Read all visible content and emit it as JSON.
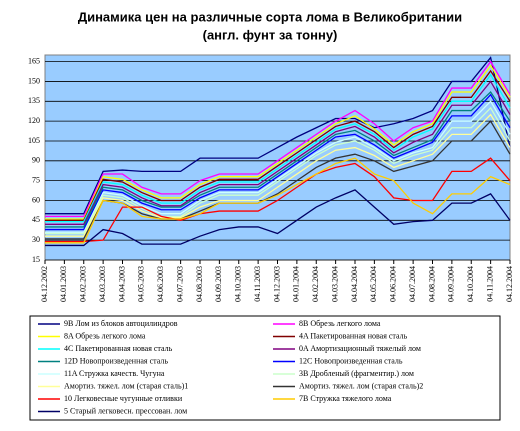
{
  "chart_data": {
    "type": "line",
    "title": "Динамика цен на различные сорта лома в Великобритании",
    "subtitle": "(англ. фунт за тонну)",
    "categories": [
      "04.12.2002",
      "04.01.2003",
      "04.02.2003",
      "04.03.2003",
      "04.04.2003",
      "04.05.2003",
      "04.06.2003",
      "04.07.2003",
      "04.08.2003",
      "04.09.2003",
      "04.10.2003",
      "04.11.2003",
      "04.12.2003",
      "04.01.2004",
      "04.02.2004",
      "04.03.2004",
      "04.04.2004",
      "04.05.2004",
      "04.06.2004",
      "04.07.2004",
      "04.08.2004",
      "04.09.2004",
      "04.10.2004",
      "04.11.2004",
      "04.12.2004"
    ],
    "ylim": [
      15,
      170
    ],
    "yticks": [
      15,
      30,
      45,
      60,
      75,
      90,
      105,
      120,
      135,
      150,
      165
    ],
    "grid": true,
    "background": "#99ccff",
    "series": [
      {
        "name": "9B Лом из блоков автоцилиндров",
        "color": "#000080",
        "values": [
          50,
          50,
          50,
          82,
          83,
          82,
          82,
          82,
          92,
          92,
          92,
          92,
          100,
          108,
          115,
          122,
          122,
          115,
          118,
          122,
          128,
          150,
          150,
          168,
          100
        ]
      },
      {
        "name": "8B Обрезь легкого лома",
        "color": "#ff00ff",
        "values": [
          48,
          48,
          48,
          80,
          80,
          70,
          65,
          65,
          75,
          80,
          80,
          80,
          90,
          100,
          110,
          120,
          128,
          118,
          105,
          115,
          120,
          145,
          145,
          165,
          140
        ]
      },
      {
        "name": "8A Обрезь легкого лома",
        "color": "#ffff00",
        "values": [
          46,
          46,
          46,
          78,
          76,
          68,
          62,
          62,
          72,
          78,
          78,
          78,
          88,
          98,
          108,
          118,
          124,
          114,
          102,
          112,
          118,
          142,
          142,
          162,
          138
        ]
      },
      {
        "name": "4A Пакетированная новая сталь",
        "color": "#800000",
        "values": [
          45,
          45,
          45,
          76,
          74,
          66,
          60,
          60,
          70,
          76,
          76,
          76,
          86,
          96,
          106,
          116,
          120,
          112,
          100,
          110,
          116,
          138,
          138,
          158,
          135
        ]
      },
      {
        "name": "4C Пакетированная новая сталь",
        "color": "#00ffff",
        "values": [
          44,
          44,
          44,
          74,
          72,
          64,
          58,
          58,
          68,
          74,
          74,
          74,
          84,
          94,
          104,
          114,
          118,
          110,
          98,
          108,
          114,
          135,
          135,
          155,
          130
        ]
      },
      {
        "name": "0A Амортизационный тяжелый лом",
        "color": "#800080",
        "values": [
          42,
          42,
          42,
          72,
          70,
          62,
          56,
          56,
          66,
          72,
          72,
          72,
          82,
          92,
          102,
          112,
          116,
          108,
          96,
          104,
          110,
          132,
          132,
          150,
          125
        ]
      },
      {
        "name": "12D Новопроизведенная сталь",
        "color": "#008080",
        "values": [
          40,
          40,
          40,
          70,
          68,
          60,
          55,
          55,
          64,
          70,
          70,
          70,
          80,
          90,
          100,
          110,
          113,
          105,
          94,
          100,
          106,
          128,
          128,
          142,
          120
        ]
      },
      {
        "name": "12C Новопроизведенная сталь",
        "color": "#0000ff",
        "values": [
          38,
          38,
          38,
          68,
          66,
          58,
          53,
          53,
          62,
          68,
          68,
          68,
          78,
          88,
          98,
          108,
          110,
          102,
          92,
          98,
          104,
          124,
          124,
          140,
          115
        ]
      },
      {
        "name": "11A Стружка качеств. Чугуна",
        "color": "#ccffff",
        "values": [
          36,
          36,
          36,
          66,
          64,
          56,
          50,
          50,
          60,
          66,
          66,
          66,
          76,
          86,
          96,
          104,
          108,
          100,
          90,
          96,
          100,
          120,
          120,
          135,
          110
        ]
      },
      {
        "name": "3B Дробленый (фрагментир.) лом",
        "color": "#ccffcc",
        "values": [
          35,
          35,
          35,
          64,
          62,
          54,
          48,
          48,
          58,
          64,
          64,
          64,
          74,
          84,
          94,
          102,
          105,
          98,
          88,
          94,
          98,
          115,
          115,
          130,
          105
        ]
      },
      {
        "name": "Амортиз. тяжел. лом (старая сталь)1",
        "color": "#ffff99",
        "values": [
          33,
          33,
          33,
          62,
          60,
          52,
          47,
          47,
          55,
          60,
          60,
          60,
          70,
          80,
          90,
          98,
          100,
          94,
          85,
          90,
          95,
          110,
          110,
          125,
          100
        ]
      },
      {
        "name": "Амортиз. тяжел. лом (старая сталь)2",
        "color": "#333333",
        "values": [
          31,
          31,
          31,
          60,
          58,
          50,
          46,
          46,
          52,
          58,
          58,
          58,
          65,
          75,
          85,
          92,
          95,
          90,
          82,
          86,
          90,
          105,
          105,
          120,
          95
        ]
      },
      {
        "name": "10 Легковесные чугунные отливки",
        "color": "#ff0000",
        "values": [
          29,
          29,
          29,
          30,
          55,
          55,
          48,
          45,
          50,
          52,
          52,
          52,
          60,
          70,
          80,
          85,
          88,
          78,
          62,
          60,
          60,
          82,
          82,
          92,
          75
        ]
      },
      {
        "name": "7B Стружка тяжелого лома",
        "color": "#ffcc00",
        "values": [
          28,
          28,
          28,
          60,
          58,
          48,
          46,
          46,
          50,
          58,
          58,
          58,
          64,
          72,
          80,
          88,
          92,
          80,
          75,
          58,
          50,
          65,
          65,
          78,
          72
        ]
      },
      {
        "name": "5 Старый легковесн. прессован. лом",
        "color": "#000066",
        "values": [
          26,
          26,
          26,
          38,
          35,
          27,
          27,
          27,
          33,
          38,
          40,
          40,
          35,
          45,
          55,
          62,
          68,
          55,
          42,
          44,
          45,
          58,
          58,
          65,
          45
        ]
      }
    ]
  }
}
